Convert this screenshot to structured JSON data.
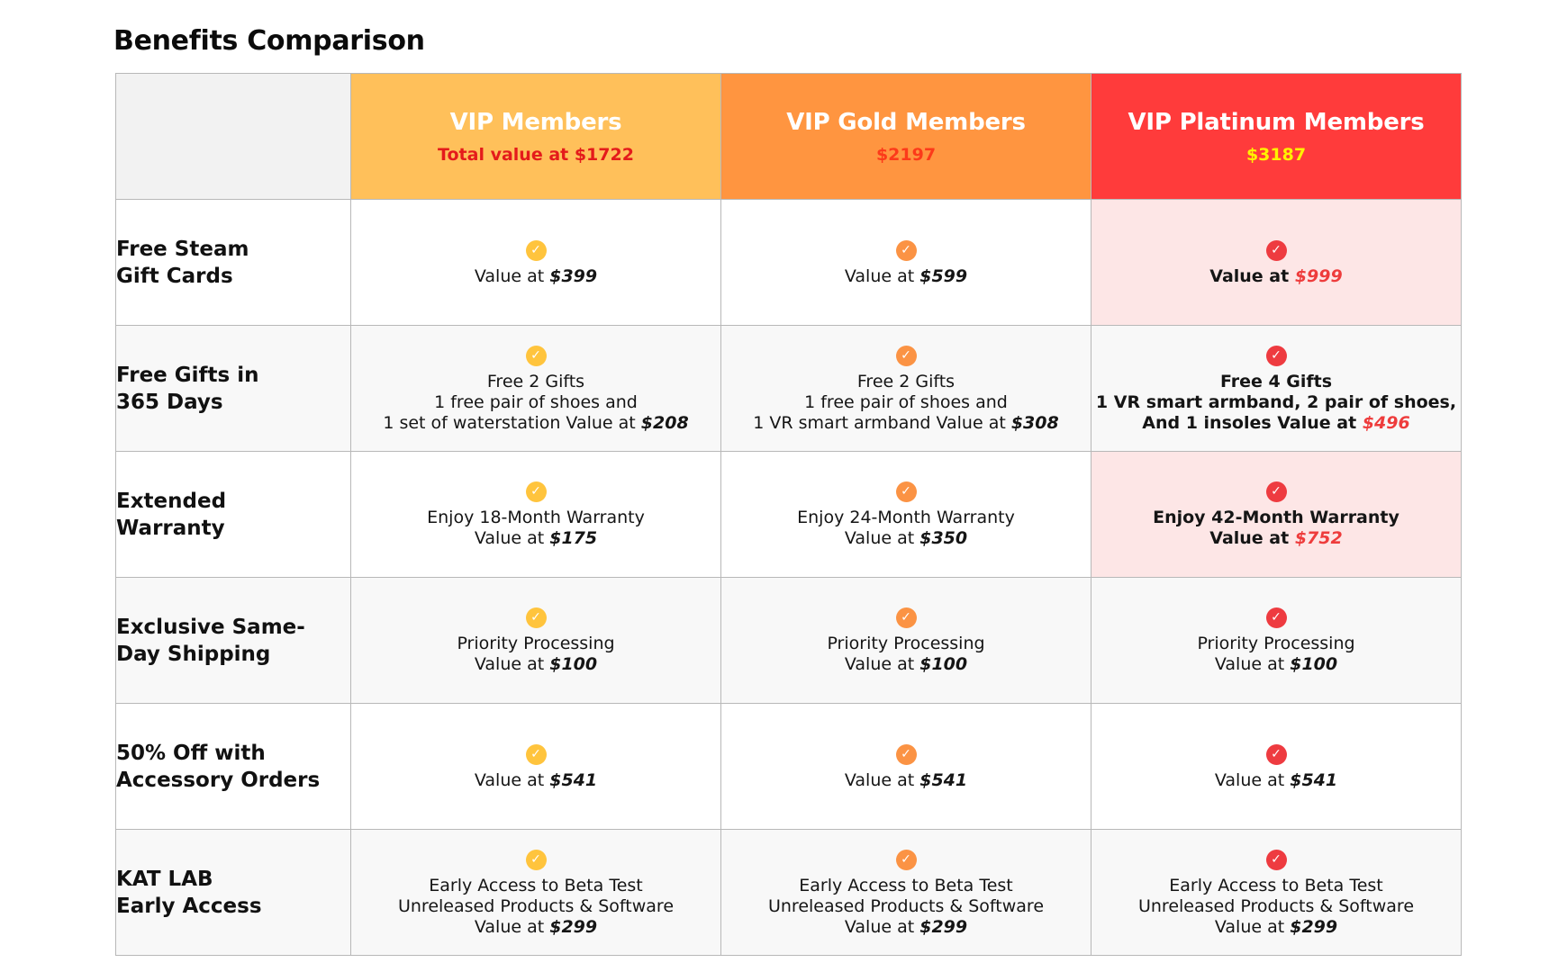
{
  "title": "Benefits Comparison",
  "colors": {
    "vip": "#ffc05a",
    "gold": "#ff9540",
    "platinum": "#ff3b3b",
    "vip_total": "#e41b1b",
    "gold_total": "#fc3a1a",
    "platinum_total": "#fff200",
    "check_vip": "#ffc43d",
    "check_gold": "#fb9344",
    "check_platinum": "#ee3b40"
  },
  "tiers": [
    {
      "name": "VIP Members",
      "total": "Total value at $1722"
    },
    {
      "name": "VIP Gold Members",
      "total": "$2197"
    },
    {
      "name": "VIP Platinum Members",
      "total": "$3187"
    }
  ],
  "check_icon": "check-circle-icon",
  "rows": [
    {
      "feature": [
        "Free Steam",
        "Gift Cards"
      ],
      "cells": [
        {
          "lines": [],
          "last_prefix": "Value at ",
          "value": "$399"
        },
        {
          "lines": [],
          "last_prefix": "Value at ",
          "value": "$599"
        },
        {
          "lines": [],
          "last_prefix": "Value at ",
          "value": "$999"
        }
      ]
    },
    {
      "feature": [
        "Free Gifts in",
        "365 Days"
      ],
      "cells": [
        {
          "lines": [
            "Free 2 Gifts",
            "1 free pair of shoes and"
          ],
          "last_prefix": "1 set of waterstation Value at ",
          "value": "$208"
        },
        {
          "lines": [
            "Free 2 Gifts",
            "1 free pair of shoes and"
          ],
          "last_prefix": "1 VR smart armband Value at ",
          "value": "$308"
        },
        {
          "lines": [
            "Free 4 Gifts",
            "1 VR smart armband, 2 pair of shoes,"
          ],
          "last_prefix": "And 1 insoles Value at ",
          "value": "$496"
        }
      ]
    },
    {
      "feature": [
        "Extended",
        "Warranty"
      ],
      "cells": [
        {
          "lines": [
            "Enjoy 18-Month Warranty"
          ],
          "last_prefix": "Value at ",
          "value": "$175"
        },
        {
          "lines": [
            "Enjoy 24-Month Warranty"
          ],
          "last_prefix": "Value at ",
          "value": "$350"
        },
        {
          "lines": [
            "Enjoy 42-Month Warranty"
          ],
          "last_prefix": "Value at ",
          "value": "$752"
        }
      ]
    },
    {
      "feature": [
        "Exclusive Same-",
        "Day Shipping"
      ],
      "cells": [
        {
          "lines": [
            "Priority Processing"
          ],
          "last_prefix": "Value at ",
          "value": "$100"
        },
        {
          "lines": [
            "Priority Processing"
          ],
          "last_prefix": "Value at ",
          "value": "$100"
        },
        {
          "lines": [
            "Priority Processing"
          ],
          "last_prefix": "Value at ",
          "value": "$100"
        }
      ]
    },
    {
      "feature": [
        "50% Off with",
        "Accessory Orders"
      ],
      "cells": [
        {
          "lines": [],
          "last_prefix": "Value at ",
          "value": "$541"
        },
        {
          "lines": [],
          "last_prefix": "Value at ",
          "value": "$541"
        },
        {
          "lines": [],
          "last_prefix": "Value at ",
          "value": "$541"
        }
      ]
    },
    {
      "feature": [
        "KAT LAB",
        "Early Access"
      ],
      "cells": [
        {
          "lines": [
            "Early Access to Beta Test",
            "Unreleased Products & Software"
          ],
          "last_prefix": "Value at ",
          "value": "$299"
        },
        {
          "lines": [
            "Early Access to Beta Test",
            "Unreleased Products & Software"
          ],
          "last_prefix": "Value at ",
          "value": "$299"
        },
        {
          "lines": [
            "Early Access to Beta Test",
            "Unreleased Products & Software"
          ],
          "last_prefix": "Value at ",
          "value": "$299"
        }
      ]
    }
  ]
}
